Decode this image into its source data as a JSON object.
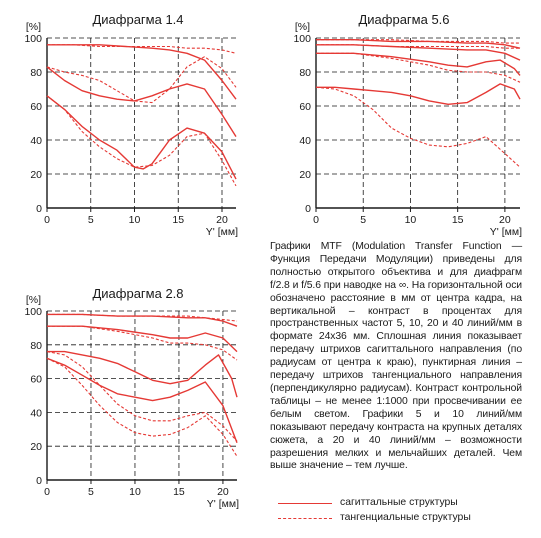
{
  "description": "Графики MTF (Modulation Transfer Function — Функция Передачи Модуляции) приведены для полностью открытого объектива и для диафрагм f/2.8 и f/5.6 при наводке на ∞. На горизонтальной оси обозначено расстояние в мм от центра кадра, на вертикальной – контраст в процентах для пространственных частот 5, 10, 20 и 40 линий/мм в формате 24x36 мм. Сплошная линия показывает передачу штрихов сагиттального направления (по радиусам от центра к краю), пунктирная линия – передачу штрихов тангенциального направления (перпендикулярно радиусам). Контраст контрольной таблицы – не менее 1:1000 при просвечивании ее белым светом. Графики 5 и 10 линий/мм показывают передачу контраста на крупных деталях сюжета, а 20 и 40 линий/мм – возможности разрешения мелких и мельчайших деталей. Чем выше значение – тем лучше.",
  "legend": {
    "sagittal": "сагиттальные структуры",
    "tangential": "тангенциальные структуры"
  },
  "colors": {
    "curve": "#e53935",
    "grid": "#1a1a1a",
    "text": "#1a1a1a"
  },
  "chart_data": [
    {
      "type": "line",
      "title": "Диафрагма 1.4",
      "ylabel": "[%]",
      "xlabel": "Y' [мм]",
      "xlim": [
        0,
        21.6
      ],
      "ylim": [
        0,
        100
      ],
      "xticks": [
        "0",
        "5",
        "10",
        "15",
        "20"
      ],
      "yticks": [
        "0",
        "20",
        "40",
        "60",
        "80",
        "100"
      ],
      "grid": "dashed",
      "series": [
        {
          "style": "solid",
          "x": [
            0,
            3,
            6,
            9,
            12,
            14,
            16,
            18,
            20,
            21.6
          ],
          "y": [
            96,
            96,
            96,
            95,
            94,
            93,
            91,
            87,
            75,
            64
          ]
        },
        {
          "style": "dashed",
          "x": [
            0,
            3,
            6,
            9,
            12,
            14,
            16,
            18,
            20,
            21.6
          ],
          "y": [
            96,
            96,
            95,
            95,
            95,
            95,
            94,
            94,
            93,
            91
          ]
        },
        {
          "style": "solid",
          "x": [
            0,
            2,
            4,
            6,
            8,
            10,
            12,
            14,
            16,
            18,
            20,
            21.6
          ],
          "y": [
            83,
            75,
            69,
            66,
            64,
            63,
            66,
            70,
            73,
            70,
            55,
            42
          ]
        },
        {
          "style": "dashed",
          "x": [
            0,
            2,
            4,
            6,
            8,
            10,
            12,
            14,
            16,
            18,
            20,
            21.6
          ],
          "y": [
            83,
            80,
            78,
            75,
            69,
            63,
            62,
            70,
            83,
            89,
            82,
            71
          ]
        },
        {
          "style": "solid",
          "x": [
            0,
            2,
            4,
            6,
            8,
            10,
            11,
            12,
            13,
            14,
            16,
            18,
            20,
            21.6
          ],
          "y": [
            66,
            58,
            48,
            40,
            34,
            24,
            23,
            26,
            33,
            40,
            47,
            44,
            33,
            17
          ]
        },
        {
          "style": "dashed",
          "x": [
            0,
            2,
            4,
            6,
            8,
            10,
            12,
            14,
            16,
            18,
            20,
            21.6
          ],
          "y": [
            66,
            58,
            45,
            36,
            29,
            24,
            25,
            31,
            42,
            44,
            28,
            13
          ]
        }
      ]
    },
    {
      "type": "line",
      "title": "Диафрагма 5.6",
      "ylabel": "[%]",
      "xlabel": "Y' [мм]",
      "xlim": [
        0,
        21.6
      ],
      "ylim": [
        0,
        100
      ],
      "xticks": [
        "0",
        "5",
        "10",
        "15",
        "20"
      ],
      "yticks": [
        "0",
        "20",
        "40",
        "60",
        "80",
        "100"
      ],
      "grid": "dashed",
      "series": [
        {
          "style": "solid",
          "x": [
            0,
            4,
            8,
            12,
            16,
            18,
            20,
            21.6
          ],
          "y": [
            99,
            99,
            98,
            98,
            97,
            97,
            96,
            94
          ]
        },
        {
          "style": "dashed",
          "x": [
            0,
            4,
            8,
            12,
            16,
            18,
            20,
            21.6
          ],
          "y": [
            99,
            99,
            99,
            98,
            98,
            98,
            97,
            97
          ]
        },
        {
          "style": "solid",
          "x": [
            0,
            4,
            8,
            12,
            16,
            18,
            20,
            21.6
          ],
          "y": [
            96,
            96,
            95,
            94,
            93,
            93,
            91,
            87
          ]
        },
        {
          "style": "dashed",
          "x": [
            0,
            4,
            8,
            12,
            16,
            18,
            20,
            21.6
          ],
          "y": [
            96,
            96,
            95,
            95,
            95,
            95,
            94,
            94
          ]
        },
        {
          "style": "solid",
          "x": [
            0,
            4,
            8,
            12,
            14,
            16,
            18,
            19.5,
            21,
            21.6
          ],
          "y": [
            91,
            91,
            89,
            86,
            84,
            83,
            86,
            87,
            82,
            78
          ]
        },
        {
          "style": "dashed",
          "x": [
            0,
            4,
            8,
            12,
            14,
            16,
            18,
            20,
            21.6
          ],
          "y": [
            91,
            91,
            88,
            84,
            81,
            80,
            80,
            78,
            74
          ]
        },
        {
          "style": "solid",
          "x": [
            0,
            2,
            4,
            6,
            8,
            10,
            12,
            14,
            16,
            18,
            19.5,
            21,
            21.6
          ],
          "y": [
            71,
            71,
            70,
            69,
            68,
            66,
            63,
            61,
            62,
            68,
            73,
            70,
            64
          ]
        },
        {
          "style": "dashed",
          "x": [
            0,
            2,
            4,
            6,
            8,
            10,
            12,
            14,
            16,
            18,
            20,
            21.6
          ],
          "y": [
            71,
            70,
            66,
            58,
            47,
            41,
            37,
            36,
            38,
            42,
            32,
            24
          ]
        }
      ]
    },
    {
      "type": "line",
      "title": "Диафрагма 2.8",
      "ylabel": "[%]",
      "xlabel": "Y' [мм]",
      "xlim": [
        0,
        21.6
      ],
      "ylim": [
        0,
        100
      ],
      "xticks": [
        "0",
        "5",
        "10",
        "15",
        "20"
      ],
      "yticks": [
        "0",
        "20",
        "40",
        "60",
        "80",
        "100"
      ],
      "grid": "dashed",
      "series": [
        {
          "style": "solid",
          "x": [
            0,
            4,
            8,
            12,
            16,
            18,
            20,
            21.6
          ],
          "y": [
            98,
            98,
            97,
            97,
            96,
            96,
            94,
            91
          ]
        },
        {
          "style": "dashed",
          "x": [
            0,
            4,
            8,
            12,
            16,
            18,
            20,
            21.6
          ],
          "y": [
            98,
            98,
            97,
            97,
            97,
            96,
            95,
            94
          ]
        },
        {
          "style": "solid",
          "x": [
            0,
            4,
            8,
            12,
            14,
            16,
            18,
            20,
            21.6
          ],
          "y": [
            91,
            91,
            89,
            86,
            84,
            84,
            87,
            84,
            76
          ]
        },
        {
          "style": "dashed",
          "x": [
            0,
            4,
            8,
            12,
            14,
            16,
            18,
            20,
            21.6
          ],
          "y": [
            91,
            91,
            88,
            84,
            81,
            81,
            80,
            77,
            71
          ]
        },
        {
          "style": "solid",
          "x": [
            0,
            2,
            4,
            6,
            8,
            10,
            12,
            14,
            16,
            18,
            19.5,
            21,
            21.6
          ],
          "y": [
            76,
            76,
            74,
            72,
            69,
            64,
            59,
            57,
            59,
            68,
            74,
            60,
            49
          ]
        },
        {
          "style": "dashed",
          "x": [
            0,
            2,
            4,
            6,
            8,
            10,
            12,
            14,
            16,
            18,
            20,
            21.6
          ],
          "y": [
            76,
            74,
            67,
            56,
            45,
            38,
            35,
            35,
            38,
            40,
            32,
            23
          ]
        },
        {
          "style": "solid",
          "x": [
            0,
            2,
            4,
            6,
            8,
            10,
            12,
            14,
            16,
            18,
            20,
            21.6
          ],
          "y": [
            72,
            68,
            62,
            56,
            51,
            49,
            47,
            49,
            53,
            58,
            44,
            22
          ]
        },
        {
          "style": "dashed",
          "x": [
            0,
            2,
            4,
            6,
            8,
            10,
            12,
            14,
            16,
            18,
            20,
            21.6
          ],
          "y": [
            72,
            67,
            56,
            44,
            34,
            28,
            26,
            27,
            31,
            38,
            27,
            14
          ]
        }
      ]
    }
  ]
}
